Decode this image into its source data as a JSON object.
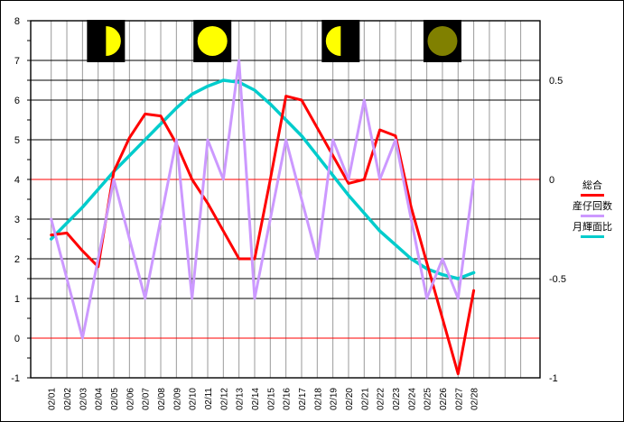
{
  "chart_data": {
    "type": "line",
    "title": "",
    "x_labels": [
      "02/01",
      "02/02",
      "02/03",
      "02/04",
      "02/05",
      "02/06",
      "02/07",
      "02/08",
      "02/09",
      "02/10",
      "02/11",
      "02/12",
      "02/13",
      "02/14",
      "02/15",
      "02/16",
      "02/17",
      "02/18",
      "02/19",
      "02/20",
      "02/21",
      "02/22",
      "02/23",
      "02/24",
      "02/25",
      "02/26",
      "02/27",
      "02/28"
    ],
    "series": [
      {
        "name": "総合",
        "axis": "left",
        "color": "#FF0000",
        "width": 3,
        "values": [
          2.6,
          2.65,
          2.2,
          1.8,
          4.2,
          5.05,
          5.65,
          5.6,
          4.9,
          4.0,
          3.4,
          2.7,
          2.0,
          2.0,
          4.0,
          6.1,
          6.0,
          5.3,
          4.6,
          3.9,
          4.0,
          5.25,
          5.1,
          3.3,
          1.9,
          0.5,
          -0.9,
          1.2
        ]
      },
      {
        "name": "産仔回数",
        "axis": "left",
        "color": "#CC99FF",
        "width": 3,
        "values": [
          3,
          1.5,
          0,
          2,
          4,
          2.5,
          1,
          3,
          5,
          1,
          5,
          4,
          7,
          1,
          3,
          5,
          3.5,
          2,
          5,
          4,
          6,
          4,
          5,
          3,
          1,
          2,
          1,
          4
        ]
      },
      {
        "name": "月輝面比",
        "axis": "right",
        "color": "#00CCCC",
        "width": 3.5,
        "values": [
          -0.3,
          -0.22,
          -0.14,
          -0.05,
          0.04,
          0.12,
          0.2,
          0.28,
          0.36,
          0.43,
          0.47,
          0.5,
          0.49,
          0.45,
          0.38,
          0.3,
          0.22,
          0.12,
          0.02,
          -0.08,
          -0.17,
          -0.26,
          -0.33,
          -0.4,
          -0.45,
          -0.48,
          -0.5,
          -0.47
        ]
      }
    ],
    "left_axis": {
      "min": -1,
      "max": 8,
      "tick_labels": [
        "8",
        "7",
        "6",
        "5",
        "4",
        "3",
        "2",
        "1",
        "0",
        "-1"
      ],
      "tick_values": [
        8,
        7,
        6,
        5,
        4,
        3,
        2,
        1,
        0,
        -1
      ],
      "minor_tick_step": 0.5
    },
    "right_axis": {
      "min": -1,
      "tick_labels": [
        "0.5",
        "0",
        "-0.5",
        "-1"
      ],
      "tick_values": [
        0.5,
        0,
        -0.5,
        -1
      ],
      "extra_gridline_values": [
        0.5,
        -0.5
      ]
    },
    "zero_gridlines": {
      "color": "#FF0000",
      "left_value": 0,
      "right_value": 0
    },
    "grid": {
      "horizontal_color": "#000000",
      "vertical_color": "#9A9A9A"
    },
    "legend_position": "right",
    "moon_icons": [
      {
        "phase": "first-quarter",
        "day_position": 4.5
      },
      {
        "phase": "full",
        "day_position": 11.3
      },
      {
        "phase": "last-quarter",
        "day_position": 19.5
      },
      {
        "phase": "new",
        "day_position": 26.0
      }
    ],
    "moon_colors": {
      "lit": "#FFFF00",
      "dark": "#808000",
      "background": "#000000"
    }
  },
  "legend": {
    "items": [
      {
        "label": "総合",
        "color": "#FF0000"
      },
      {
        "label": "産仔回数",
        "color": "#CC99FF"
      },
      {
        "label": "月輝面比",
        "color": "#00CCCC"
      }
    ]
  }
}
